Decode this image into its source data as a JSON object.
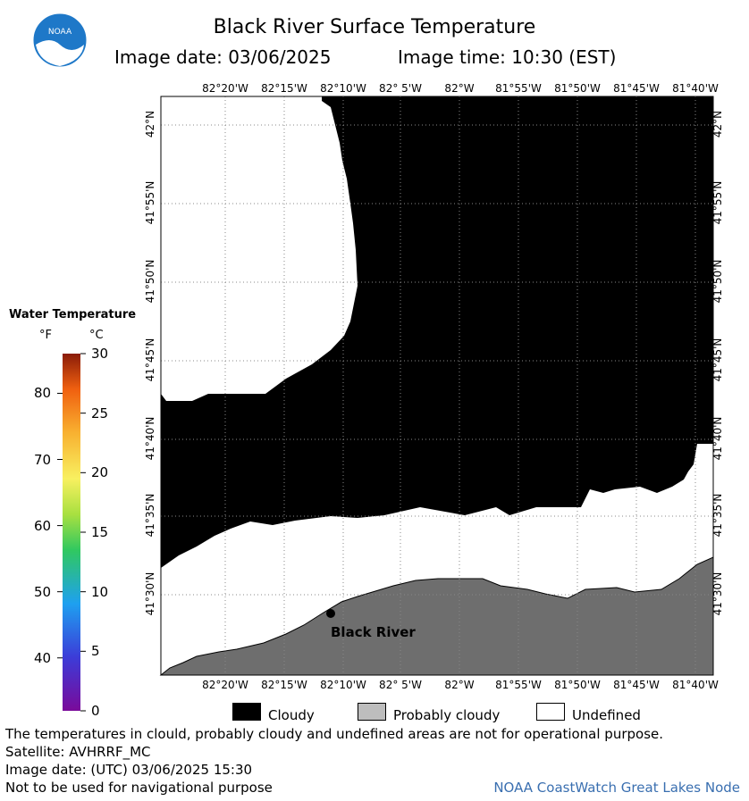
{
  "header": {
    "title": "Black River Surface Temperature",
    "image_date": "Image date: 03/06/2025",
    "image_time": "Image time: 10:30 (EST)",
    "logo_text": "NOAA"
  },
  "map": {
    "lon_labels": [
      "82°20'W",
      "82°15'W",
      "82°10'W",
      "82° 5'W",
      "82°W",
      "81°55'W",
      "81°50'W",
      "81°45'W",
      "81°40'W"
    ],
    "lat_labels": [
      "42°N",
      "41°55'N",
      "41°50'N",
      "41°45'N",
      "41°40'N",
      "41°35'N",
      "41°30'N"
    ],
    "place_label": "Black River",
    "colors": {
      "cloud": "#000000",
      "land": "#6e6e6e",
      "undefined": "#ffffff",
      "grid": "#888888"
    }
  },
  "legend": {
    "title": "Water Temperature",
    "unit_f": "°F",
    "unit_c": "°C",
    "f_ticks": [
      "80",
      "70",
      "60",
      "50",
      "40"
    ],
    "c_ticks": [
      "30",
      "25",
      "20",
      "15",
      "10",
      "5",
      "0"
    ]
  },
  "key": {
    "cloudy": "Cloudy",
    "probably_cloudy": "Probably cloudy",
    "undefined": "Undefined"
  },
  "footer": {
    "disclaimer": "The temperatures in clould, probably cloudy and undefined areas are not for operational purpose.",
    "satellite": "Satellite: AVHRRF_MC",
    "utc_date": "Image date: (UTC) 03/06/2025  15:30",
    "nav_warning": "Not to be used for navigational purpose",
    "credit": "NOAA CoastWatch Great Lakes Node"
  }
}
